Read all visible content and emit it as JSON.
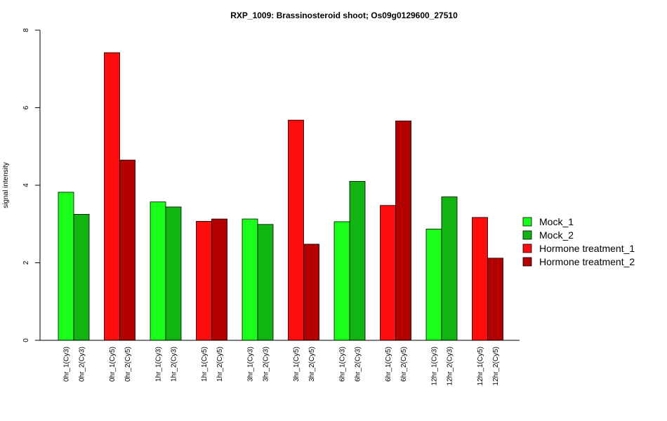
{
  "chart_data": {
    "type": "bar",
    "title": "RXP_1009: Brassinosteroid shoot; Os09g0129600_27510",
    "ylabel": "signal intensity",
    "xlabel": "",
    "ylim": [
      0,
      8
    ],
    "yticks": [
      0,
      2,
      4,
      6,
      8
    ],
    "grid": false,
    "legend_position": "right",
    "legend": [
      {
        "name": "Mock_1",
        "color": "#1aff1a"
      },
      {
        "name": "Mock_2",
        "color": "#11b511"
      },
      {
        "name": "Hormone treatment_1",
        "color": "#ff0d0d"
      },
      {
        "name": "Hormone treatment_2",
        "color": "#b30000"
      }
    ],
    "groups": [
      {
        "bars": [
          {
            "label": "0hr_1(Cy3)",
            "value": 3.82,
            "series": 0
          },
          {
            "label": "0hr_2(Cy3)",
            "value": 3.25,
            "series": 1
          }
        ]
      },
      {
        "bars": [
          {
            "label": "0hr_1(Cy5)",
            "value": 7.42,
            "series": 2
          },
          {
            "label": "0hr_2(Cy5)",
            "value": 4.65,
            "series": 3
          }
        ]
      },
      {
        "bars": [
          {
            "label": "1hr_1(Cy3)",
            "value": 3.57,
            "series": 0
          },
          {
            "label": "1hr_2(Cy3)",
            "value": 3.44,
            "series": 1
          }
        ]
      },
      {
        "bars": [
          {
            "label": "1hr_1(Cy5)",
            "value": 3.07,
            "series": 2
          },
          {
            "label": "1hr_2(Cy5)",
            "value": 3.13,
            "series": 3
          }
        ]
      },
      {
        "bars": [
          {
            "label": "3hr_1(Cy3)",
            "value": 3.13,
            "series": 0
          },
          {
            "label": "3hr_2(Cy3)",
            "value": 2.99,
            "series": 1
          }
        ]
      },
      {
        "bars": [
          {
            "label": "3hr_1(Cy5)",
            "value": 5.68,
            "series": 2
          },
          {
            "label": "3hr_2(Cy5)",
            "value": 2.48,
            "series": 3
          }
        ]
      },
      {
        "bars": [
          {
            "label": "6hr_1(Cy3)",
            "value": 3.06,
            "series": 0
          },
          {
            "label": "6hr_2(Cy3)",
            "value": 4.1,
            "series": 1
          }
        ]
      },
      {
        "bars": [
          {
            "label": "6hr_1(Cy5)",
            "value": 3.48,
            "series": 2
          },
          {
            "label": "6hr_2(Cy5)",
            "value": 5.66,
            "series": 3
          }
        ]
      },
      {
        "bars": [
          {
            "label": "12hr_1(Cy3)",
            "value": 2.87,
            "series": 0
          },
          {
            "label": "12hr_2(Cy3)",
            "value": 3.7,
            "series": 1
          }
        ]
      },
      {
        "bars": [
          {
            "label": "12hr_1(Cy5)",
            "value": 3.17,
            "series": 2
          },
          {
            "label": "12hr_2(Cy5)",
            "value": 2.12,
            "series": 3
          }
        ]
      }
    ]
  }
}
